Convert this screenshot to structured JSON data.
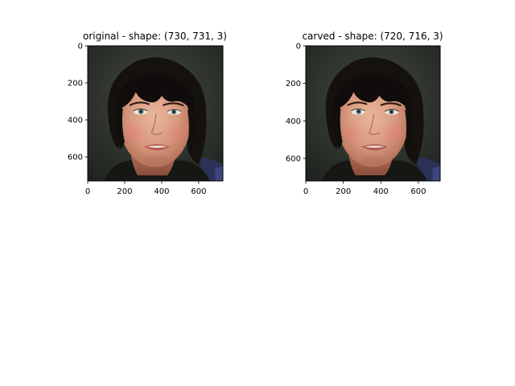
{
  "chart_data": [
    {
      "type": "image",
      "title": "original - shape: (730, 731, 3)",
      "image_description": "photo portrait of a woman with dark bangs",
      "image_shape": [
        730,
        731,
        3
      ],
      "xlim": [
        0,
        731
      ],
      "ylim": [
        730,
        0
      ],
      "xticks": [
        0,
        200,
        400,
        600
      ],
      "yticks": [
        0,
        200,
        400,
        600
      ]
    },
    {
      "type": "image",
      "title": "carved - shape: (720, 716, 3)",
      "image_description": "photo portrait of a woman with dark bangs",
      "image_shape": [
        720,
        716,
        3
      ],
      "xlim": [
        0,
        716
      ],
      "ylim": [
        720,
        0
      ],
      "xticks": [
        0,
        200,
        400,
        600
      ],
      "yticks": [
        0,
        200,
        400,
        600
      ]
    }
  ]
}
